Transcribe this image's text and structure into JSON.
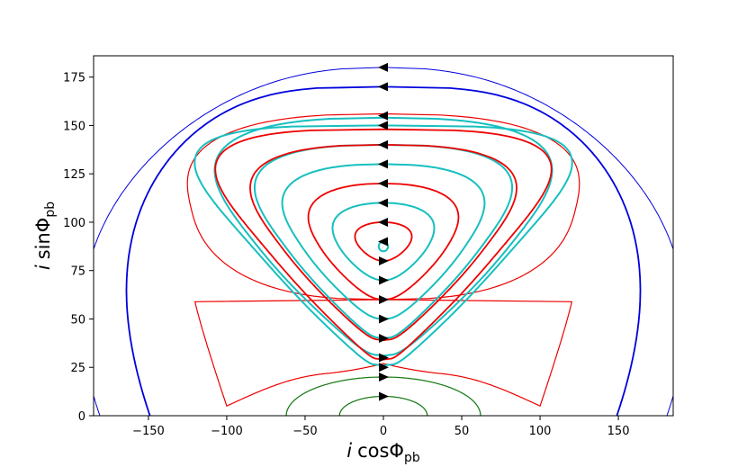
{
  "chart_data": {
    "type": "line",
    "xlabel": {
      "var": "i",
      "func": "cosΦ",
      "sub": "pb"
    },
    "ylabel": {
      "var": "i",
      "func": "sinΦ",
      "sub": "pb"
    },
    "xlim": [
      -185,
      185
    ],
    "ylim": [
      0,
      186
    ],
    "xticks": [
      {
        "value": -150,
        "label": "−150"
      },
      {
        "value": -100,
        "label": "−100"
      },
      {
        "value": -50,
        "label": "−50"
      },
      {
        "value": 0,
        "label": "0"
      },
      {
        "value": 50,
        "label": "50"
      },
      {
        "value": 100,
        "label": "100"
      },
      {
        "value": 150,
        "label": "150"
      }
    ],
    "yticks": [
      {
        "value": 0,
        "label": "0"
      },
      {
        "value": 25,
        "label": "25"
      },
      {
        "value": 50,
        "label": "50"
      },
      {
        "value": 75,
        "label": "75"
      },
      {
        "value": 100,
        "label": "100"
      },
      {
        "value": 125,
        "label": "125"
      },
      {
        "value": 150,
        "label": "150"
      },
      {
        "value": 175,
        "label": "175"
      }
    ],
    "grid": false,
    "colors": {
      "outer": "#0000dd",
      "separatrix": "#ee0000",
      "cyan": "#17bfbf",
      "red": "#ee0000",
      "inner": "#117711",
      "arrow": "#000000"
    },
    "series": [
      {
        "kind": "dome",
        "color": "outer",
        "width": 1.0,
        "top": 180,
        "xEdge": 181,
        "c": 0.35,
        "p": 2.4
      },
      {
        "kind": "dome",
        "color": "outer",
        "width": 1.8,
        "top": 170,
        "xEdge": 149,
        "c": 0.4,
        "p": 3.4
      },
      {
        "kind": "sep",
        "color": "separatrix",
        "width": 1.2,
        "top": 156,
        "bottom": 27,
        "xEdge": 123,
        "bigX": 90,
        "c": 0.45,
        "p": 2.6,
        "cuspX": 100,
        "cuspY": 5,
        "shoulder": 20
      },
      {
        "kind": "loop",
        "color": "cyan",
        "width": 2.0,
        "top": 154,
        "bottom": 31,
        "xr": 114,
        "c": 0.7,
        "p": 2.6
      },
      {
        "kind": "loop",
        "color": "cyan",
        "width": 2.0,
        "top": 150,
        "bottom": 26,
        "xr": 117,
        "c": 0.8,
        "p": 3.6
      },
      {
        "kind": "loop",
        "color": "red",
        "width": 1.8,
        "top": 148,
        "bottom": 29,
        "xr": 107,
        "c": 0.8,
        "p": 3.2
      },
      {
        "kind": "loop",
        "color": "cyan",
        "width": 2.0,
        "top": 140,
        "bottom": 40,
        "xr": 87,
        "c": 0.7,
        "p": 2.6
      },
      {
        "kind": "loop",
        "color": "red",
        "width": 1.8,
        "top": 140,
        "bottom": 39,
        "xr": 90,
        "c": 0.7,
        "p": 2.6
      },
      {
        "kind": "loop",
        "color": "cyan",
        "width": 2.0,
        "top": 130,
        "bottom": 50,
        "xr": 70,
        "c": 0.6,
        "p": 2.4
      },
      {
        "kind": "loop",
        "color": "red",
        "width": 1.8,
        "top": 120,
        "bottom": 60,
        "xr": 53,
        "c": 0.5,
        "p": 2.2
      },
      {
        "kind": "loop",
        "color": "cyan",
        "width": 2.0,
        "top": 110,
        "bottom": 70,
        "xr": 36,
        "c": 0.4,
        "p": 2.1
      },
      {
        "kind": "loop",
        "color": "red",
        "width": 1.8,
        "top": 100,
        "bottom": 80,
        "xr": 20,
        "c": 0.3,
        "p": 2.0
      },
      {
        "kind": "loop",
        "color": "cyan",
        "width": 2.0,
        "top": 90,
        "bottom": 85,
        "xr": 3,
        "c": 0.0,
        "p": 2.0
      },
      {
        "kind": "dome",
        "color": "inner",
        "width": 1.2,
        "top": 20,
        "xEdge": 62,
        "c": 0.0,
        "p": 2.0
      },
      {
        "kind": "dome",
        "color": "inner",
        "width": 1.2,
        "top": 10,
        "xEdge": 28,
        "c": 0.0,
        "p": 2.0
      }
    ],
    "arrows": [
      {
        "y": 180,
        "dir": "left"
      },
      {
        "y": 170,
        "dir": "left"
      },
      {
        "y": 155,
        "dir": "left"
      },
      {
        "y": 150,
        "dir": "left"
      },
      {
        "y": 140,
        "dir": "left"
      },
      {
        "y": 130,
        "dir": "left"
      },
      {
        "y": 120,
        "dir": "left"
      },
      {
        "y": 110,
        "dir": "left"
      },
      {
        "y": 100,
        "dir": "left"
      },
      {
        "y": 90,
        "dir": "left"
      },
      {
        "y": 80,
        "dir": "right"
      },
      {
        "y": 70,
        "dir": "right"
      },
      {
        "y": 60,
        "dir": "right"
      },
      {
        "y": 50,
        "dir": "right"
      },
      {
        "y": 40,
        "dir": "right"
      },
      {
        "y": 30,
        "dir": "right"
      },
      {
        "y": 25,
        "dir": "right"
      },
      {
        "y": 20,
        "dir": "right"
      },
      {
        "y": 10,
        "dir": "right"
      }
    ]
  }
}
